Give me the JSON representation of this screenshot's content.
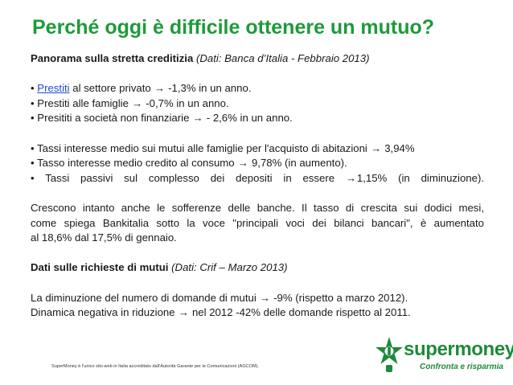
{
  "title": "Perché oggi è difficile ottenere un mutuo?",
  "section1": {
    "heading": "Panorama sulla stretta creditizia",
    "source": "(Dati: Banca d’Italia - Febbraio 2013)"
  },
  "bullets_credit": [
    {
      "bullet": "•",
      "link": "Prestiti",
      "text": " al settore privato",
      "value": " -1,3% in un anno."
    },
    {
      "bullet": "•",
      "text": "Prestiti alle famiglie",
      "value": " -0,7% in un anno."
    },
    {
      "bullet": "•",
      "text": "Presititi a società non finanziarie",
      "value": " - 2,6% in un anno."
    }
  ],
  "bullets_rates": [
    {
      "bullet": "•",
      "text": "Tassi interesse medio sui mutui alle famiglie per l'acquisto di abitazioni",
      "value": " 3,94%"
    },
    {
      "bullet": "•",
      "text": "Tasso interesse medio credito al consumo",
      "value": " 9,78% (in aumento)."
    },
    {
      "bullet": "•",
      "text": "Tassi passivi sul complesso dei depositi in essere",
      "value": "1,15% (in diminuzione)."
    }
  ],
  "paragraph": [
    "Crescono intanto anche le sofferenze delle banche. Il tasso di crescita sui dodici mesi,",
    "come spiega Bankitalia sotto la voce \"principali voci dei bilanci bancari\", è aumentato",
    "al 18,6% dal 17,5% di gennaio."
  ],
  "section2": {
    "heading": "Dati sulle richieste di mutui",
    "source": "(Dati: Crif – Marzo 2013)"
  },
  "requests": [
    {
      "text": "La diminuzione del numero di domande di mutui",
      "value": " -9% (rispetto a marzo 2012)."
    },
    {
      "text": "Dinamica negativa in riduzione",
      "value": " nel 2012 -42% delle domande rispetto al 2011."
    }
  ],
  "arrow_glyph": "→",
  "footer": "SuperMoney è l'unico sito web in Italia accreditato dall'Autorità Garante per le Comunicazioni (AGCOM).",
  "logo": {
    "name": "supermoney",
    "tagline": "Confronta e risparmia",
    "icon": "star-logo-icon"
  },
  "colors": {
    "title": "#1e9a3a",
    "link": "#1f4bd1",
    "logo": "#1e8a3a"
  }
}
